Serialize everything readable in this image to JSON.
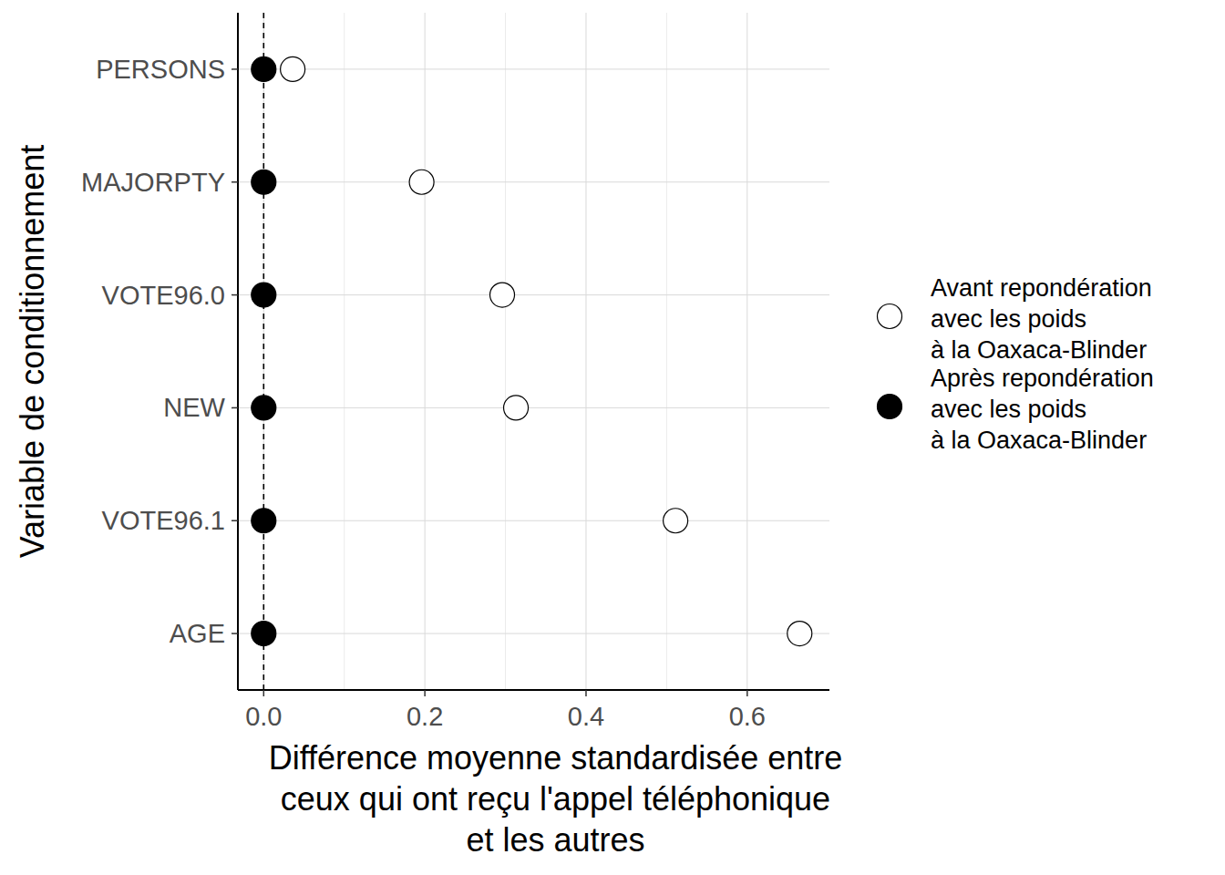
{
  "chart_data": {
    "type": "dot",
    "orientation": "horizontal",
    "xlabel": "Différence moyenne standardisée entre\nceux qui ont reçu l'appel téléphonique\net les autres",
    "ylabel": "Variable de conditionnement",
    "categories": [
      "PERSONS",
      "MAJORPTY",
      "VOTE96.0",
      "NEW",
      "VOTE96.1",
      "AGE"
    ],
    "series": [
      {
        "name": "Avant repondération\navec les poids\nà la Oaxaca-Blinder",
        "color": "#000000",
        "marker": "open-circle",
        "values": [
          0.036,
          0.196,
          0.296,
          0.313,
          0.511,
          0.665
        ]
      },
      {
        "name": "Après repondération\navec les poids\nà la Oaxaca-Blinder",
        "color": "#000000",
        "marker": "circle",
        "values": [
          0.0,
          0.0,
          0.0,
          0.0,
          0.0,
          0.0
        ]
      }
    ],
    "xlim": [
      -0.032,
      0.702
    ],
    "xticks": [
      {
        "value": 0,
        "label": "0.0"
      },
      {
        "value": 0.2,
        "label": "0.2"
      },
      {
        "value": 0.4,
        "label": "0.4"
      },
      {
        "value": 0.6,
        "label": "0.6"
      }
    ],
    "reference_line": {
      "value": 0,
      "line_style": "dashed"
    },
    "grid": true,
    "legend": "right"
  }
}
